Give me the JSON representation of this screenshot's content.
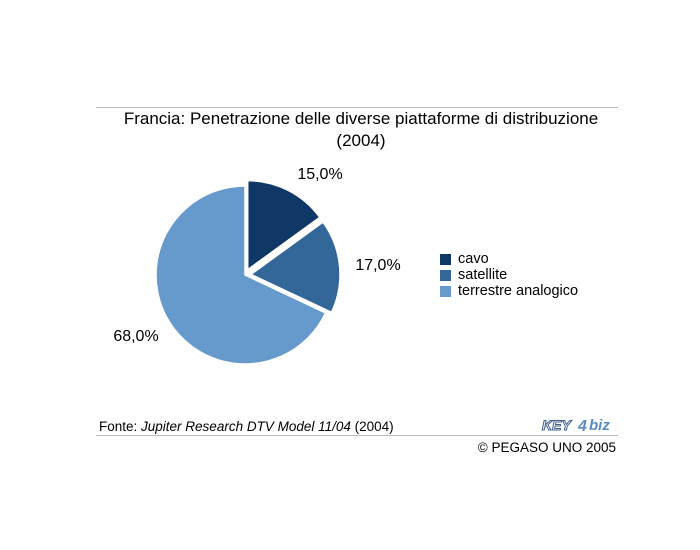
{
  "title_line1": "Francia: Penetrazione delle diverse piattaforme di distribuzione",
  "title_line2": "(2004)",
  "chart_data": {
    "type": "pie",
    "title": "Francia: Penetrazione delle diverse piattaforme di distribuzione (2004)",
    "series": [
      {
        "name": "cavo",
        "value": 15.0,
        "label": "15,0%",
        "color": "#0f3866"
      },
      {
        "name": "satellite",
        "value": 17.0,
        "label": "17,0%",
        "color": "#336699"
      },
      {
        "name": "terrestre analogico",
        "value": 68.0,
        "label": "68,0%",
        "color": "#6699cc"
      }
    ],
    "legend_position": "right"
  },
  "source": {
    "prefix": "Fonte: ",
    "italic": "Jupiter Research DTV Model 11/04",
    "suffix": " (2004)"
  },
  "copyright": "© PEGASO UNO 2005",
  "logo": {
    "text_left": "KEY",
    "text_mid": "4",
    "text_right": "biz"
  }
}
